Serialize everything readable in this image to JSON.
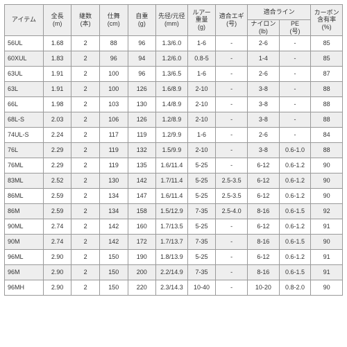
{
  "table": {
    "type": "table",
    "background_color": "#ffffff",
    "alt_row_color": "#eeeeee",
    "border_color": "#999999",
    "text_color": "#333333",
    "font_size_pt": 7,
    "header": {
      "group_line": "適合ライン",
      "cols": [
        "アイテム",
        "全長\n(m)",
        "継数\n(本)",
        "仕舞\n(cm)",
        "自重\n(g)",
        "先径/元径\n(mm)",
        "ルアー\n重量\n(g)",
        "適合エギ\n(号)",
        "ナイロン\n(lb)",
        "PE\n(号)",
        "カーボン\n含有率\n(%)"
      ]
    },
    "rows": [
      [
        "56UL",
        "1.68",
        "2",
        "88",
        "96",
        "1.3/6.0",
        "1-6",
        "-",
        "2-6",
        "-",
        "85"
      ],
      [
        "60XUL",
        "1.83",
        "2",
        "96",
        "94",
        "1.2/6.0",
        "0.8-5",
        "-",
        "1-4",
        "-",
        "85"
      ],
      [
        "63UL",
        "1.91",
        "2",
        "100",
        "96",
        "1.3/6.5",
        "1-6",
        "-",
        "2-6",
        "-",
        "87"
      ],
      [
        "63L",
        "1.91",
        "2",
        "100",
        "126",
        "1.6/8.9",
        "2-10",
        "-",
        "3-8",
        "-",
        "88"
      ],
      [
        "66L",
        "1.98",
        "2",
        "103",
        "130",
        "1.4/8.9",
        "2-10",
        "-",
        "3-8",
        "-",
        "88"
      ],
      [
        "68L-S",
        "2.03",
        "2",
        "106",
        "126",
        "1.2/8.9",
        "2-10",
        "-",
        "3-8",
        "-",
        "88"
      ],
      [
        "74UL-S",
        "2.24",
        "2",
        "117",
        "119",
        "1.2/9.9",
        "1-6",
        "-",
        "2-6",
        "-",
        "84"
      ],
      [
        "76L",
        "2.29",
        "2",
        "119",
        "132",
        "1.5/9.9",
        "2-10",
        "-",
        "3-8",
        "0.6-1.0",
        "88"
      ],
      [
        "76ML",
        "2.29",
        "2",
        "119",
        "135",
        "1.6/11.4",
        "5-25",
        "-",
        "6-12",
        "0.6-1.2",
        "90"
      ],
      [
        "83ML",
        "2.52",
        "2",
        "130",
        "142",
        "1.7/11.4",
        "5-25",
        "2.5-3.5",
        "6-12",
        "0.6-1.2",
        "90"
      ],
      [
        "86ML",
        "2.59",
        "2",
        "134",
        "147",
        "1.6/11.4",
        "5-25",
        "2.5-3.5",
        "6-12",
        "0.6-1.2",
        "90"
      ],
      [
        "86M",
        "2.59",
        "2",
        "134",
        "158",
        "1.5/12.9",
        "7-35",
        "2.5-4.0",
        "8-16",
        "0.6-1.5",
        "92"
      ],
      [
        "90ML",
        "2.74",
        "2",
        "142",
        "160",
        "1.7/13.5",
        "5-25",
        "-",
        "6-12",
        "0.6-1.2",
        "91"
      ],
      [
        "90M",
        "2.74",
        "2",
        "142",
        "172",
        "1.7/13.7",
        "7-35",
        "-",
        "8-16",
        "0.6-1.5",
        "90"
      ],
      [
        "96ML",
        "2.90",
        "2",
        "150",
        "190",
        "1.8/13.9",
        "5-25",
        "-",
        "6-12",
        "0.6-1.2",
        "91"
      ],
      [
        "96M",
        "2.90",
        "2",
        "150",
        "200",
        "2.2/14.9",
        "7-35",
        "-",
        "8-16",
        "0.6-1.5",
        "91"
      ],
      [
        "96MH",
        "2.90",
        "2",
        "150",
        "220",
        "2.3/14.3",
        "10-40",
        "-",
        "10-20",
        "0.8-2.0",
        "90"
      ]
    ]
  }
}
